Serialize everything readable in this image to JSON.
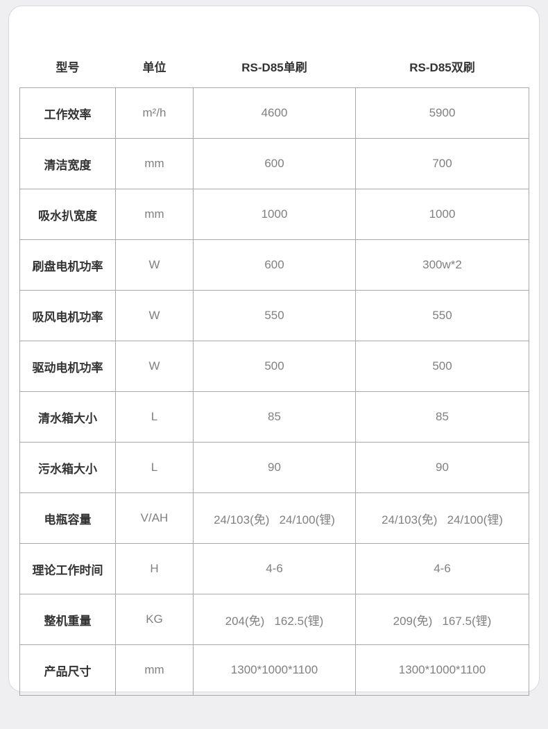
{
  "page": {
    "background_color": "#efeef0",
    "card_background": "#ffffff",
    "border_color": "#a8a7a9",
    "label_color": "#333333",
    "value_color": "#808080"
  },
  "table": {
    "headers": [
      "型号",
      "单位",
      "RS-D85单刷",
      "RS-D85双刷"
    ],
    "rows": [
      {
        "label": "工作效率",
        "unit": "m²/h",
        "single": "4600",
        "double": "5900"
      },
      {
        "label": "清洁宽度",
        "unit": "mm",
        "single": "600",
        "double": "700"
      },
      {
        "label": "吸水扒宽度",
        "unit": "mm",
        "single": "1000",
        "double": "1000"
      },
      {
        "label": "刷盘电机功率",
        "unit": "W",
        "single": "600",
        "double": "300w*2"
      },
      {
        "label": "吸风电机功率",
        "unit": "W",
        "single": "550",
        "double": "550"
      },
      {
        "label": "驱动电机功率",
        "unit": "W",
        "single": "500",
        "double": "500"
      },
      {
        "label": "清水箱大小",
        "unit": "L",
        "single": "85",
        "double": "85"
      },
      {
        "label": "污水箱大小",
        "unit": "L",
        "single": "90",
        "double": "90"
      },
      {
        "label": "电瓶容量",
        "unit": "V/AH",
        "single": "24/103(免)   24/100(锂)",
        "double": "24/103(免)   24/100(锂)"
      },
      {
        "label": "理论工作时间",
        "unit": "H",
        "single": "4-6",
        "double": "4-6"
      },
      {
        "label": "整机重量",
        "unit": "KG",
        "single": "204(免)   162.5(锂)",
        "double": "209(免)   167.5(锂)"
      },
      {
        "label": "产品尺寸",
        "unit": "mm",
        "single": "1300*1000*1100",
        "double": "1300*1000*1100"
      }
    ]
  }
}
